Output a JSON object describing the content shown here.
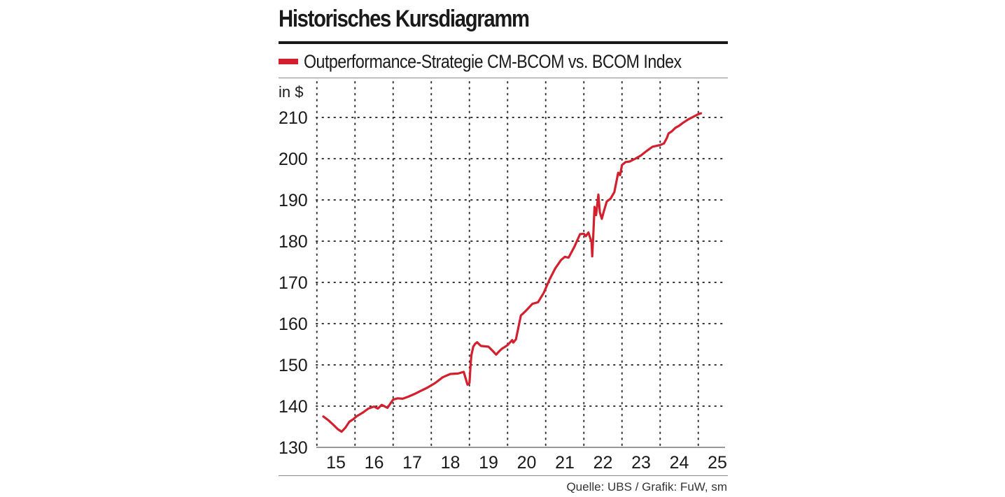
{
  "header": {
    "title": "Historisches Kursdiagramm"
  },
  "legend": {
    "label": "Outperformance-Strategie CM-BCOM vs. BCOM Index"
  },
  "footer": {
    "source": "Quelle: UBS / Grafik: FuW, sm"
  },
  "chart_data": {
    "type": "line",
    "title": "Historisches Kursdiagramm",
    "ylabel": "in $",
    "xlabel": "",
    "ylim": [
      130,
      211
    ],
    "xlim": [
      2014.65,
      2025.35
    ],
    "yticks": [
      130,
      140,
      150,
      160,
      170,
      180,
      190,
      200,
      210
    ],
    "xtick_labels": [
      "15",
      "16",
      "17",
      "18",
      "19",
      "20",
      "21",
      "22",
      "23",
      "24",
      "25"
    ],
    "xtick_positions": [
      2015.0,
      2016.0,
      2017.0,
      2018.0,
      2019.0,
      2020.0,
      2021.0,
      2022.0,
      2023.0,
      2024.0,
      2025.0
    ],
    "grid": true,
    "legend_position": "top-left",
    "colors": {
      "line": "#d2202f",
      "grid": "#333333",
      "text": "#1a1a1a"
    },
    "series": [
      {
        "name": "Outperformance-Strategie CM-BCOM vs. BCOM Index",
        "x": [
          2014.67,
          2014.8,
          2014.95,
          2015.05,
          2015.15,
          2015.25,
          2015.35,
          2015.45,
          2015.55,
          2015.7,
          2015.85,
          2016.0,
          2016.1,
          2016.2,
          2016.35,
          2016.5,
          2016.62,
          2016.75,
          2016.9,
          2017.05,
          2017.2,
          2017.4,
          2017.6,
          2017.8,
          2018.0,
          2018.2,
          2018.35,
          2018.45,
          2018.5,
          2018.53,
          2018.55,
          2018.6,
          2018.65,
          2018.7,
          2018.8,
          2019.0,
          2019.1,
          2019.2,
          2019.28,
          2019.35,
          2019.5,
          2019.62,
          2019.65,
          2019.72,
          2019.8,
          2019.85,
          2019.9,
          2020.0,
          2020.15,
          2020.3,
          2020.45,
          2020.6,
          2020.75,
          2020.9,
          2021.0,
          2021.1,
          2021.25,
          2021.4,
          2021.5,
          2021.55,
          2021.62,
          2021.7,
          2021.72,
          2021.75,
          2021.78,
          2021.82,
          2021.88,
          2021.92,
          2021.97,
          2022.02,
          2022.1,
          2022.2,
          2022.3,
          2022.4,
          2022.45,
          2022.5,
          2022.6,
          2022.7,
          2022.85,
          2023.0,
          2023.15,
          2023.3,
          2023.5,
          2023.6,
          2023.68,
          2023.72,
          2023.8,
          2023.9,
          2024.0,
          2024.1,
          2024.25,
          2024.4,
          2024.5,
          2024.57
        ],
        "y": [
          137.5,
          136.6,
          135.3,
          134.4,
          133.8,
          134.8,
          136.2,
          136.8,
          137.6,
          138.4,
          139.4,
          139.9,
          139.4,
          140.3,
          139.6,
          141.6,
          141.9,
          141.8,
          142.3,
          142.9,
          143.6,
          144.5,
          145.6,
          147.0,
          147.8,
          147.9,
          148.3,
          145.2,
          145.6,
          150.0,
          152.3,
          154.4,
          155.1,
          155.5,
          154.6,
          154.4,
          153.5,
          152.5,
          153.3,
          153.9,
          154.8,
          156.0,
          155.4,
          156.2,
          159.8,
          162.0,
          162.4,
          163.3,
          164.8,
          165.2,
          167.5,
          170.7,
          173.4,
          175.4,
          176.2,
          176.0,
          178.6,
          181.7,
          181.8,
          181.2,
          182.1,
          179.8,
          176.3,
          182.1,
          188.3,
          186.3,
          191.3,
          187.0,
          185.4,
          187.1,
          189.6,
          190.3,
          191.9,
          196.6,
          196.0,
          198.5,
          199.2,
          199.3,
          200.0,
          200.8,
          201.9,
          202.9,
          203.3,
          203.7,
          205.1,
          206.1,
          206.6,
          207.5,
          208.0,
          208.7,
          209.6,
          210.3,
          210.8,
          211.0
        ]
      }
    ]
  }
}
